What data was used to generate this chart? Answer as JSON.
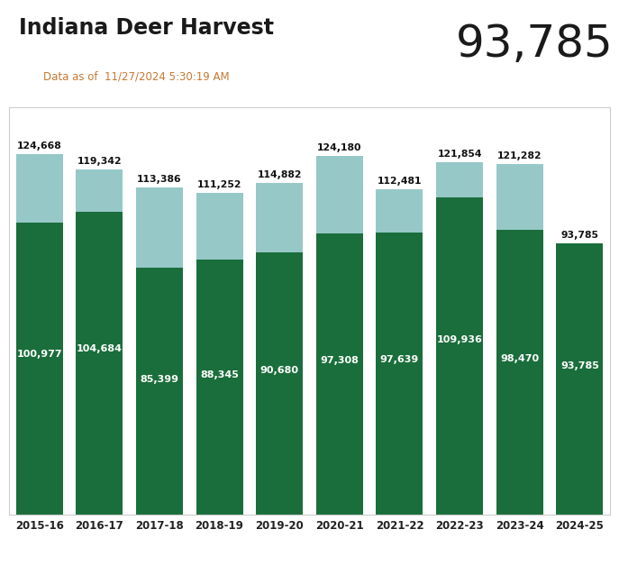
{
  "title": "Indiana Deer Harvest",
  "subtitle": "Data as of  11/27/2024 5:30:19 AM",
  "big_number": "93,785",
  "categories": [
    "2015-16",
    "2016-17",
    "2017-18",
    "2018-19",
    "2019-20",
    "2020-21",
    "2021-22",
    "2022-23",
    "2023-24",
    "2024-25"
  ],
  "bottom_values": [
    100977,
    104684,
    85399,
    88345,
    90680,
    97308,
    97639,
    109936,
    98470,
    93785
  ],
  "top_values": [
    23691,
    14658,
    27987,
    22907,
    24202,
    26872,
    14842,
    11918,
    22812,
    0
  ],
  "total_labels": [
    "124,668",
    "119,342",
    "113,386",
    "111,252",
    "114,882",
    "124,180",
    "112,481",
    "121,854",
    "121,282",
    "93,785"
  ],
  "bottom_labels": [
    "100,977",
    "104,684",
    "85,399",
    "88,345",
    "90,680",
    "97,308",
    "97,639",
    "109,936",
    "98,470",
    "93,785"
  ],
  "dark_green": "#1a6e3c",
  "light_teal": "#96c8c8",
  "title_color": "#1a1a1a",
  "subtitle_color": "#c87832",
  "background_color": "#ffffff",
  "chart_bg": "#ffffff",
  "border_color": "#cccccc"
}
